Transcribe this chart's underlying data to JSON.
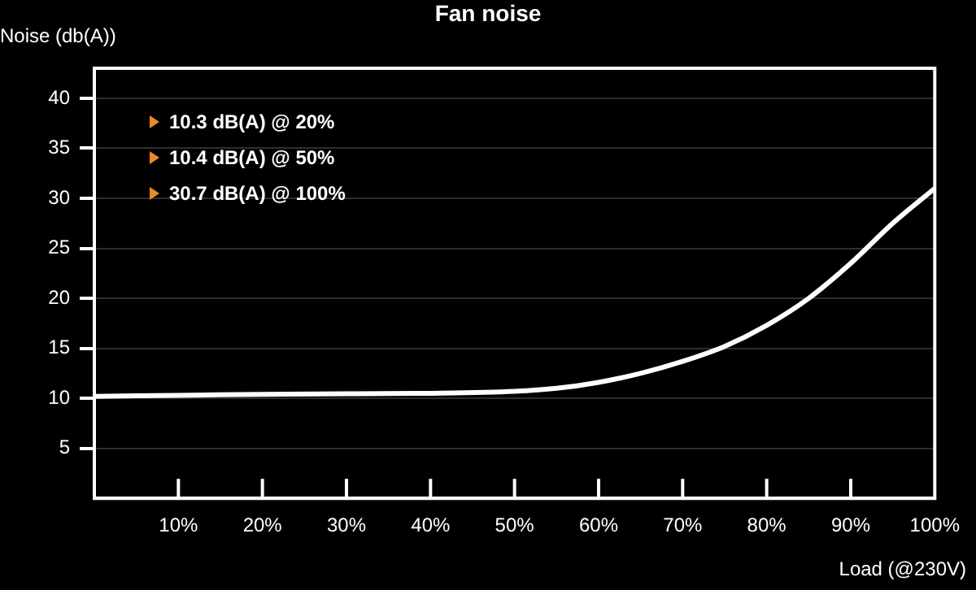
{
  "chart_data": {
    "type": "line",
    "title": "Fan noise",
    "xlabel": "Load (@230V)",
    "ylabel": "Noise (db(A))",
    "x": [
      0,
      10,
      20,
      30,
      40,
      50,
      55,
      60,
      65,
      70,
      75,
      80,
      85,
      90,
      95,
      100
    ],
    "series": [
      {
        "color": "#ffffff",
        "values": [
          10.2,
          10.3,
          10.4,
          10.45,
          10.5,
          10.7,
          11,
          11.6,
          12.5,
          13.7,
          15.2,
          17.3,
          20,
          23.5,
          27.5,
          31
        ]
      }
    ],
    "xlim": [
      0,
      100
    ],
    "xticks": [
      {
        "value": 10,
        "label": "10%"
      },
      {
        "value": 20,
        "label": "20%"
      },
      {
        "value": 30,
        "label": "30%"
      },
      {
        "value": 40,
        "label": "40%"
      },
      {
        "value": 50,
        "label": "50%"
      },
      {
        "value": 60,
        "label": "60%"
      },
      {
        "value": 70,
        "label": "70%"
      },
      {
        "value": 80,
        "label": "80%"
      },
      {
        "value": 90,
        "label": "90%"
      },
      {
        "value": 100,
        "label": "100%"
      }
    ],
    "ylim": [
      0,
      43
    ],
    "yticks": [
      5,
      10,
      15,
      20,
      25,
      30,
      35,
      40
    ],
    "grid": "y",
    "legend": false,
    "marker": "none",
    "line_style": "solid",
    "annotations": [
      "10.3 dB(A) @ 20%",
      "10.4 dB(A) @ 50%",
      "30.7 dB(A) @ 100%"
    ]
  }
}
